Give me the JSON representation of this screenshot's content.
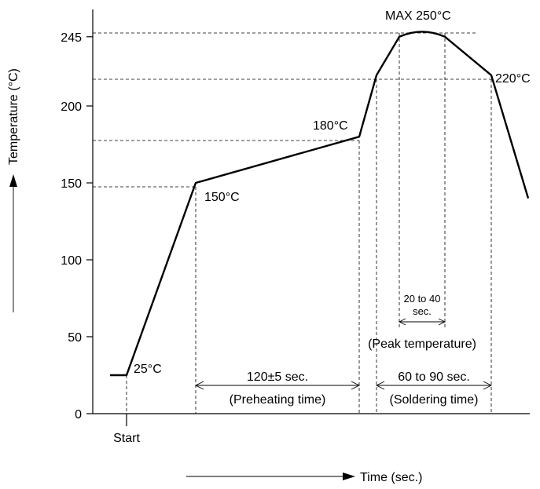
{
  "chart_data": {
    "type": "line",
    "ylabel": "Temperature (°C)",
    "xlabel": "Time (sec.)",
    "ylim": [
      0,
      250
    ],
    "yticks": [
      "0",
      "50",
      "100",
      "150",
      "200",
      "245"
    ],
    "ytick_values": [
      0,
      50,
      100,
      150,
      200,
      245
    ],
    "start_label": "Start",
    "series": [
      {
        "points_temperature": [
          25,
          25,
          150,
          180,
          220,
          245,
          250,
          245,
          220,
          140
        ]
      }
    ],
    "annotations": {
      "t25": "25°C",
      "t150": "150°C",
      "t180": "180°C",
      "t220": "220°C",
      "tmax": "MAX 250°C",
      "preheat_duration": "120±5 sec.",
      "preheat_name": "(Preheating time)",
      "solder_duration": "60 to 90 sec.",
      "solder_name": "(Soldering time)",
      "peak_duration_1": "20 to 40",
      "peak_duration_2": "sec.",
      "peak_name": "(Peak temperature)"
    }
  }
}
